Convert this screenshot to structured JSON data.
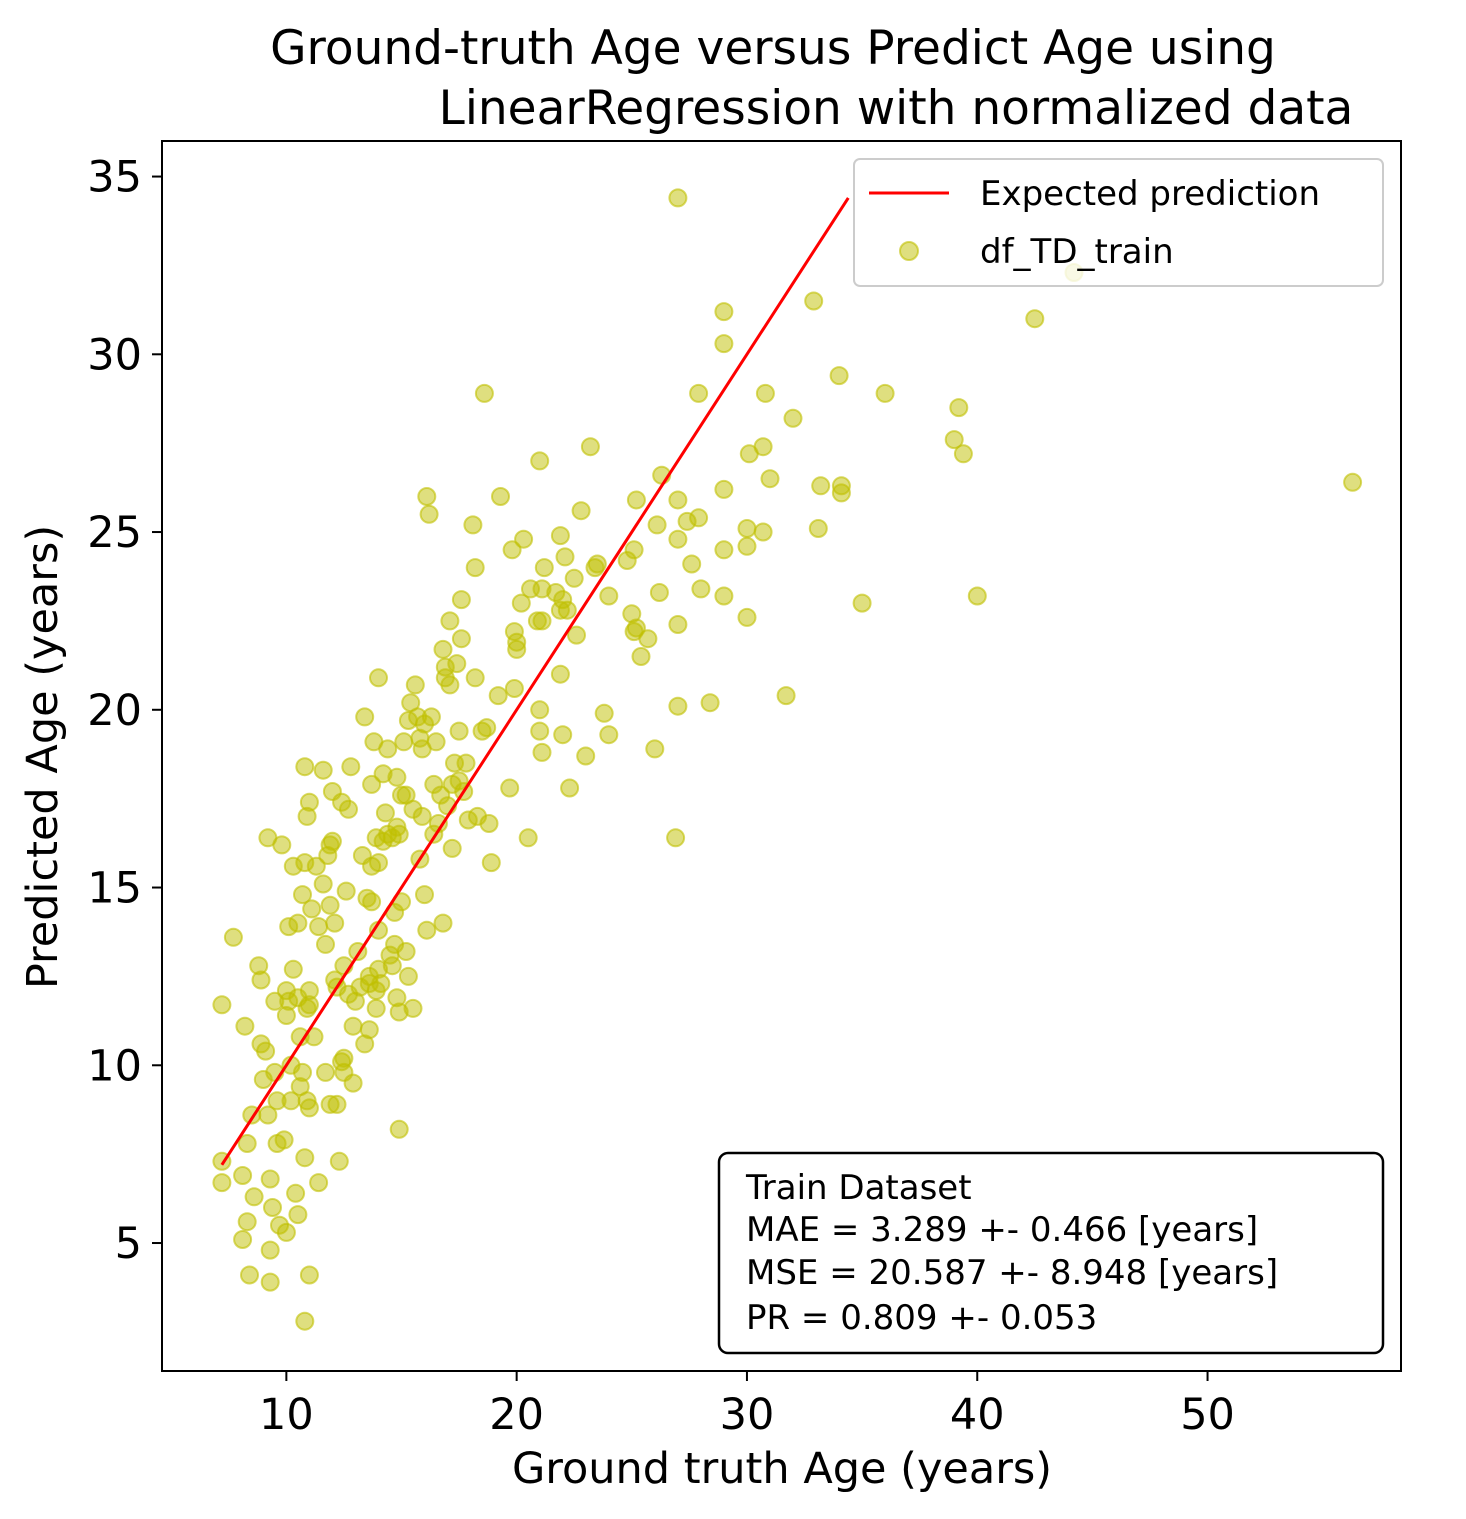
{
  "chart_data": {
    "type": "scatter",
    "title_lines": [
      "Ground-truth Age versus Predict Age using",
      "LinearRegression  with normalized data"
    ],
    "xlabel": "Ground truth Age (years)",
    "ylabel": "Predicted Age (years)",
    "xlim": [
      4.6,
      58.4
    ],
    "ylim": [
      1.4,
      36.0
    ],
    "xticks": [
      10,
      20,
      30,
      40,
      50
    ],
    "yticks": [
      5,
      10,
      15,
      20,
      25,
      30,
      35
    ],
    "grid": false,
    "legend_position": "top-right",
    "line_series": {
      "name": "Expected prediction",
      "color": "#ff0000",
      "x": [
        7.2,
        34.4
      ],
      "y": [
        7.2,
        34.4
      ]
    },
    "scatter_series": {
      "name": "df_TD_train",
      "color": "#bfbf00",
      "opacity": 0.5,
      "points": [
        [
          7.2,
          11.7
        ],
        [
          7.2,
          7.3
        ],
        [
          7.2,
          6.7
        ],
        [
          7.7,
          13.6
        ],
        [
          8.1,
          5.1
        ],
        [
          8.1,
          6.9
        ],
        [
          8.2,
          11.1
        ],
        [
          8.3,
          5.6
        ],
        [
          8.3,
          7.8
        ],
        [
          8.4,
          4.1
        ],
        [
          8.5,
          8.6
        ],
        [
          8.6,
          6.3
        ],
        [
          8.8,
          12.8
        ],
        [
          8.9,
          12.4
        ],
        [
          8.9,
          10.6
        ],
        [
          9.0,
          9.6
        ],
        [
          9.1,
          10.4
        ],
        [
          9.2,
          16.4
        ],
        [
          9.2,
          8.6
        ],
        [
          9.3,
          6.8
        ],
        [
          9.3,
          4.8
        ],
        [
          9.3,
          3.9
        ],
        [
          9.4,
          6.0
        ],
        [
          9.5,
          11.8
        ],
        [
          9.5,
          9.8
        ],
        [
          9.6,
          7.8
        ],
        [
          9.6,
          9.0
        ],
        [
          9.7,
          5.5
        ],
        [
          9.8,
          16.2
        ],
        [
          9.9,
          7.9
        ],
        [
          10.0,
          12.1
        ],
        [
          10.0,
          11.4
        ],
        [
          10.0,
          5.3
        ],
        [
          10.1,
          13.9
        ],
        [
          10.1,
          11.8
        ],
        [
          10.2,
          9.0
        ],
        [
          10.2,
          10.0
        ],
        [
          10.3,
          15.6
        ],
        [
          10.3,
          12.7
        ],
        [
          10.4,
          6.4
        ],
        [
          10.5,
          5.8
        ],
        [
          10.5,
          14.0
        ],
        [
          10.5,
          11.9
        ],
        [
          10.6,
          10.8
        ],
        [
          10.6,
          9.4
        ],
        [
          10.7,
          14.8
        ],
        [
          10.7,
          9.8
        ],
        [
          10.8,
          15.7
        ],
        [
          10.8,
          18.4
        ],
        [
          10.9,
          17.0
        ],
        [
          10.9,
          11.6
        ],
        [
          10.9,
          9.0
        ],
        [
          11.0,
          17.4
        ],
        [
          11.0,
          11.7
        ],
        [
          11.0,
          12.1
        ],
        [
          11.0,
          8.8
        ],
        [
          11.0,
          4.1
        ],
        [
          10.8,
          2.8
        ],
        [
          10.8,
          7.4
        ],
        [
          11.1,
          14.4
        ],
        [
          11.2,
          10.8
        ],
        [
          11.3,
          15.6
        ],
        [
          11.4,
          13.9
        ],
        [
          11.4,
          6.7
        ],
        [
          11.6,
          18.3
        ],
        [
          11.6,
          15.1
        ],
        [
          11.7,
          9.8
        ],
        [
          11.7,
          13.4
        ],
        [
          11.8,
          15.9
        ],
        [
          11.9,
          14.5
        ],
        [
          11.9,
          16.2
        ],
        [
          11.9,
          8.9
        ],
        [
          12.0,
          16.3
        ],
        [
          12.0,
          17.7
        ],
        [
          12.1,
          14.0
        ],
        [
          12.1,
          12.4
        ],
        [
          12.2,
          12.2
        ],
        [
          12.2,
          8.9
        ],
        [
          12.3,
          7.3
        ],
        [
          12.4,
          17.4
        ],
        [
          12.4,
          10.1
        ],
        [
          12.5,
          12.8
        ],
        [
          12.5,
          9.8
        ],
        [
          12.5,
          10.2
        ],
        [
          12.6,
          14.9
        ],
        [
          12.7,
          17.2
        ],
        [
          12.7,
          12.0
        ],
        [
          12.8,
          18.4
        ],
        [
          12.9,
          11.1
        ],
        [
          12.9,
          9.5
        ],
        [
          13.0,
          11.8
        ],
        [
          13.1,
          13.2
        ],
        [
          13.2,
          12.2
        ],
        [
          13.3,
          15.9
        ],
        [
          13.4,
          10.6
        ],
        [
          13.4,
          19.8
        ],
        [
          13.5,
          14.7
        ],
        [
          13.6,
          11.0
        ],
        [
          13.6,
          12.3
        ],
        [
          13.6,
          12.5
        ],
        [
          13.7,
          15.6
        ],
        [
          13.7,
          14.6
        ],
        [
          13.7,
          17.9
        ],
        [
          13.8,
          19.1
        ],
        [
          13.9,
          16.4
        ],
        [
          13.9,
          12.1
        ],
        [
          13.9,
          11.6
        ],
        [
          14.0,
          20.9
        ],
        [
          14.0,
          15.7
        ],
        [
          14.0,
          13.8
        ],
        [
          14.0,
          12.7
        ],
        [
          14.1,
          12.3
        ],
        [
          14.2,
          16.3
        ],
        [
          14.2,
          18.2
        ],
        [
          14.3,
          17.1
        ],
        [
          14.4,
          18.9
        ],
        [
          14.4,
          16.5
        ],
        [
          14.5,
          13.1
        ],
        [
          14.6,
          12.8
        ],
        [
          14.6,
          16.4
        ],
        [
          14.7,
          14.3
        ],
        [
          14.7,
          13.4
        ],
        [
          14.8,
          18.1
        ],
        [
          14.8,
          16.7
        ],
        [
          14.8,
          11.9
        ],
        [
          14.9,
          16.5
        ],
        [
          14.9,
          11.5
        ],
        [
          14.9,
          8.2
        ],
        [
          15.0,
          17.6
        ],
        [
          15.0,
          14.6
        ],
        [
          15.1,
          19.1
        ],
        [
          15.2,
          13.2
        ],
        [
          15.2,
          17.6
        ],
        [
          15.3,
          12.5
        ],
        [
          15.3,
          19.7
        ],
        [
          15.4,
          20.2
        ],
        [
          15.5,
          17.2
        ],
        [
          15.5,
          11.6
        ],
        [
          15.6,
          20.7
        ],
        [
          15.7,
          19.8
        ],
        [
          15.8,
          19.2
        ],
        [
          15.8,
          15.8
        ],
        [
          15.9,
          17.0
        ],
        [
          15.9,
          18.9
        ],
        [
          16.0,
          19.6
        ],
        [
          16.0,
          14.8
        ],
        [
          16.1,
          26.0
        ],
        [
          16.1,
          13.8
        ],
        [
          16.2,
          25.5
        ],
        [
          16.3,
          19.8
        ],
        [
          16.4,
          17.9
        ],
        [
          16.4,
          16.5
        ],
        [
          16.5,
          19.1
        ],
        [
          16.6,
          16.8
        ],
        [
          16.7,
          17.6
        ],
        [
          16.8,
          21.7
        ],
        [
          16.8,
          14.0
        ],
        [
          16.9,
          20.9
        ],
        [
          16.9,
          21.2
        ],
        [
          17.0,
          17.3
        ],
        [
          17.1,
          22.5
        ],
        [
          17.1,
          20.7
        ],
        [
          17.2,
          17.9
        ],
        [
          17.2,
          16.1
        ],
        [
          17.3,
          18.5
        ],
        [
          17.4,
          21.3
        ],
        [
          17.5,
          19.4
        ],
        [
          17.5,
          18.0
        ],
        [
          17.6,
          22.0
        ],
        [
          17.6,
          23.1
        ],
        [
          17.7,
          17.7
        ],
        [
          17.8,
          18.5
        ],
        [
          17.9,
          16.9
        ],
        [
          18.1,
          25.2
        ],
        [
          18.2,
          24.0
        ],
        [
          18.2,
          20.9
        ],
        [
          18.3,
          17.0
        ],
        [
          18.5,
          19.4
        ],
        [
          18.6,
          28.9
        ],
        [
          18.7,
          19.5
        ],
        [
          18.8,
          16.8
        ],
        [
          18.9,
          15.7
        ],
        [
          19.2,
          20.4
        ],
        [
          19.3,
          26.0
        ],
        [
          19.7,
          17.8
        ],
        [
          19.8,
          24.5
        ],
        [
          19.9,
          22.2
        ],
        [
          19.9,
          20.6
        ],
        [
          20.0,
          21.7
        ],
        [
          20.0,
          21.9
        ],
        [
          20.2,
          23.0
        ],
        [
          20.3,
          24.8
        ],
        [
          20.5,
          16.4
        ],
        [
          20.6,
          23.4
        ],
        [
          20.9,
          22.5
        ],
        [
          21.0,
          20.0
        ],
        [
          21.0,
          27.0
        ],
        [
          21.0,
          19.4
        ],
        [
          21.1,
          22.5
        ],
        [
          21.1,
          18.8
        ],
        [
          21.1,
          23.4
        ],
        [
          21.2,
          24.0
        ],
        [
          21.7,
          23.3
        ],
        [
          21.9,
          21.0
        ],
        [
          21.9,
          22.8
        ],
        [
          21.9,
          24.9
        ],
        [
          22.0,
          19.3
        ],
        [
          22.0,
          23.1
        ],
        [
          22.1,
          24.3
        ],
        [
          22.2,
          22.8
        ],
        [
          22.3,
          17.8
        ],
        [
          22.5,
          23.7
        ],
        [
          22.6,
          22.1
        ],
        [
          22.8,
          25.6
        ],
        [
          23.0,
          18.7
        ],
        [
          23.2,
          27.4
        ],
        [
          23.4,
          24.0
        ],
        [
          23.5,
          24.1
        ],
        [
          23.8,
          19.9
        ],
        [
          24.0,
          23.2
        ],
        [
          24.0,
          19.3
        ],
        [
          24.8,
          24.2
        ],
        [
          25.0,
          22.7
        ],
        [
          25.1,
          22.2
        ],
        [
          25.1,
          24.5
        ],
        [
          25.2,
          22.3
        ],
        [
          25.2,
          25.9
        ],
        [
          25.4,
          21.5
        ],
        [
          25.7,
          22.0
        ],
        [
          26.0,
          18.9
        ],
        [
          26.1,
          25.2
        ],
        [
          26.2,
          23.3
        ],
        [
          26.3,
          26.6
        ],
        [
          26.9,
          16.4
        ],
        [
          27.0,
          34.4
        ],
        [
          27.0,
          20.1
        ],
        [
          27.0,
          22.4
        ],
        [
          27.0,
          24.8
        ],
        [
          27.0,
          25.9
        ],
        [
          27.4,
          25.3
        ],
        [
          27.6,
          24.1
        ],
        [
          27.9,
          25.4
        ],
        [
          28.0,
          23.4
        ],
        [
          27.9,
          28.9
        ],
        [
          28.4,
          20.2
        ],
        [
          29.0,
          31.2
        ],
        [
          29.0,
          30.3
        ],
        [
          29.0,
          26.2
        ],
        [
          29.0,
          24.5
        ],
        [
          29.0,
          23.2
        ],
        [
          30.0,
          22.6
        ],
        [
          30.0,
          24.6
        ],
        [
          30.0,
          25.1
        ],
        [
          30.1,
          27.2
        ],
        [
          30.7,
          25.0
        ],
        [
          30.7,
          27.4
        ],
        [
          30.8,
          28.9
        ],
        [
          31.0,
          26.5
        ],
        [
          31.7,
          20.4
        ],
        [
          32.0,
          28.2
        ],
        [
          32.9,
          31.5
        ],
        [
          33.1,
          25.1
        ],
        [
          33.2,
          26.3
        ],
        [
          34.0,
          29.4
        ],
        [
          34.1,
          26.1
        ],
        [
          34.1,
          26.3
        ],
        [
          35.0,
          23.0
        ],
        [
          36.0,
          28.9
        ],
        [
          39.0,
          27.6
        ],
        [
          39.2,
          28.5
        ],
        [
          39.4,
          27.2
        ],
        [
          40.0,
          23.2
        ],
        [
          42.5,
          31.0
        ],
        [
          44.2,
          32.3
        ],
        [
          56.3,
          26.4
        ]
      ]
    },
    "stats_box": {
      "lines": [
        "Train Dataset",
        "MAE = 3.289 +- 0.466 [years]",
        "MSE = 20.587 +- 8.948 [years]",
        "PR = 0.809 +- 0.053"
      ]
    }
  }
}
